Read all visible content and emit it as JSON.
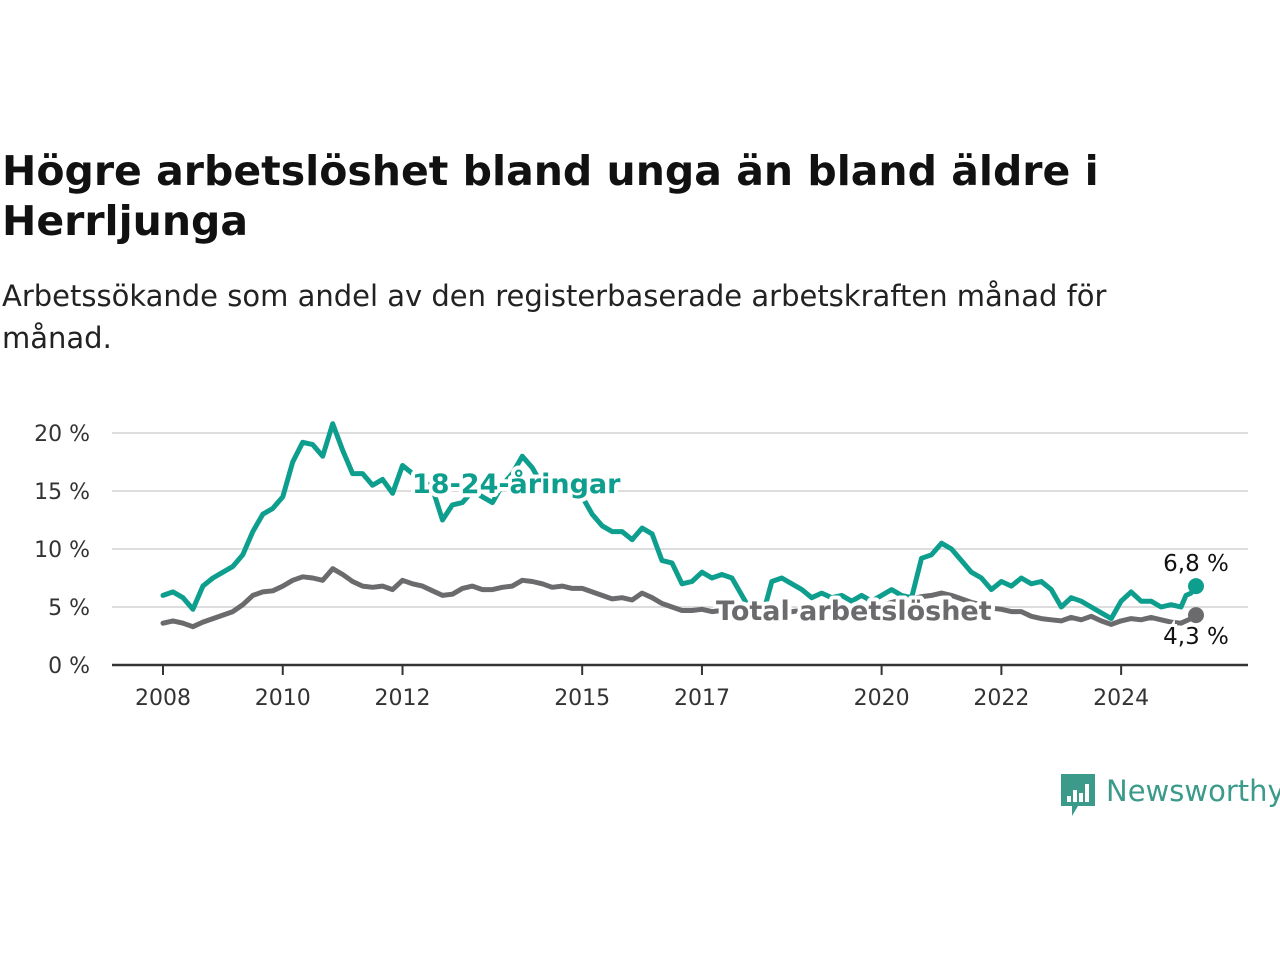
{
  "title": "Högre arbetslöshet bland unga än bland äldre i Herrljunga",
  "subtitle": "Arbetssökande som andel av den registerbaserade arbetskraften månad för månad.",
  "brand": {
    "name": "Newsworthy",
    "icon": "newsworthy-logo-icon",
    "color": "#3c9a8a"
  },
  "colors": {
    "youth": "#0e9e8e",
    "total": "#6b6b6e",
    "grid": "#dddddd",
    "axis": "#333333"
  },
  "chart_data": {
    "type": "line",
    "ylim": [
      0,
      20
    ],
    "y_ticks": [
      0,
      5,
      10,
      15,
      20
    ],
    "y_tick_labels": [
      "0 %",
      "5 %",
      "10 %",
      "15 %",
      "20 %"
    ],
    "xlim": [
      "2008-01",
      "2025-04"
    ],
    "x_ticks": [
      "2008-01",
      "2010-01",
      "2012-01",
      "2015-01",
      "2017-01",
      "2020-01",
      "2022-01",
      "2024-01"
    ],
    "x_tick_labels": [
      "2008",
      "2010",
      "2012",
      "2015",
      "2017",
      "2020",
      "2022",
      "2024"
    ],
    "grid": true,
    "series": [
      {
        "name": "18-24-åringar",
        "end_label": "6,8 %",
        "points": [
          [
            "2008-01",
            6.0
          ],
          [
            "2008-03",
            6.3
          ],
          [
            "2008-05",
            5.8
          ],
          [
            "2008-07",
            4.8
          ],
          [
            "2008-09",
            6.8
          ],
          [
            "2008-11",
            7.5
          ],
          [
            "2009-01",
            8.0
          ],
          [
            "2009-03",
            8.5
          ],
          [
            "2009-05",
            9.5
          ],
          [
            "2009-07",
            11.5
          ],
          [
            "2009-09",
            13.0
          ],
          [
            "2009-11",
            13.5
          ],
          [
            "2010-01",
            14.5
          ],
          [
            "2010-03",
            17.5
          ],
          [
            "2010-05",
            19.2
          ],
          [
            "2010-07",
            19.0
          ],
          [
            "2010-09",
            18.0
          ],
          [
            "2010-11",
            20.8
          ],
          [
            "2011-01",
            18.5
          ],
          [
            "2011-03",
            16.5
          ],
          [
            "2011-05",
            16.5
          ],
          [
            "2011-07",
            15.5
          ],
          [
            "2011-09",
            16.0
          ],
          [
            "2011-11",
            14.8
          ],
          [
            "2012-01",
            17.2
          ],
          [
            "2012-03",
            16.5
          ],
          [
            "2012-05",
            16.0
          ],
          [
            "2012-07",
            15.2
          ],
          [
            "2012-09",
            12.5
          ],
          [
            "2012-11",
            13.8
          ],
          [
            "2013-01",
            14.0
          ],
          [
            "2013-03",
            15.0
          ],
          [
            "2013-05",
            14.5
          ],
          [
            "2013-07",
            14.0
          ],
          [
            "2013-09",
            15.5
          ],
          [
            "2013-11",
            16.5
          ],
          [
            "2014-01",
            18.0
          ],
          [
            "2014-03",
            17.0
          ],
          [
            "2014-05",
            15.5
          ],
          [
            "2014-07",
            14.8
          ],
          [
            "2014-09",
            15.5
          ],
          [
            "2014-11",
            15.0
          ],
          [
            "2015-01",
            14.5
          ],
          [
            "2015-03",
            13.0
          ],
          [
            "2015-05",
            12.0
          ],
          [
            "2015-07",
            11.5
          ],
          [
            "2015-09",
            11.5
          ],
          [
            "2015-11",
            10.8
          ],
          [
            "2016-01",
            11.8
          ],
          [
            "2016-03",
            11.3
          ],
          [
            "2016-05",
            9.0
          ],
          [
            "2016-07",
            8.8
          ],
          [
            "2016-09",
            7.0
          ],
          [
            "2016-11",
            7.2
          ],
          [
            "2017-01",
            8.0
          ],
          [
            "2017-03",
            7.5
          ],
          [
            "2017-05",
            7.8
          ],
          [
            "2017-07",
            7.5
          ],
          [
            "2017-09",
            6.0
          ],
          [
            "2017-11",
            4.5
          ],
          [
            "2018-01",
            4.0
          ],
          [
            "2018-03",
            7.2
          ],
          [
            "2018-05",
            7.5
          ],
          [
            "2018-07",
            7.0
          ],
          [
            "2018-09",
            6.5
          ],
          [
            "2018-11",
            5.8
          ],
          [
            "2019-01",
            6.2
          ],
          [
            "2019-03",
            5.8
          ],
          [
            "2019-05",
            6.0
          ],
          [
            "2019-07",
            5.5
          ],
          [
            "2019-09",
            6.0
          ],
          [
            "2019-11",
            5.5
          ],
          [
            "2020-01",
            6.0
          ],
          [
            "2020-03",
            6.5
          ],
          [
            "2020-05",
            6.0
          ],
          [
            "2020-07",
            5.8
          ],
          [
            "2020-09",
            9.2
          ],
          [
            "2020-11",
            9.5
          ],
          [
            "2021-01",
            10.5
          ],
          [
            "2021-03",
            10.0
          ],
          [
            "2021-05",
            9.0
          ],
          [
            "2021-07",
            8.0
          ],
          [
            "2021-09",
            7.5
          ],
          [
            "2021-11",
            6.5
          ],
          [
            "2022-01",
            7.2
          ],
          [
            "2022-03",
            6.8
          ],
          [
            "2022-05",
            7.5
          ],
          [
            "2022-07",
            7.0
          ],
          [
            "2022-09",
            7.2
          ],
          [
            "2022-11",
            6.5
          ],
          [
            "2023-01",
            5.0
          ],
          [
            "2023-03",
            5.8
          ],
          [
            "2023-05",
            5.5
          ],
          [
            "2023-07",
            5.0
          ],
          [
            "2023-09",
            4.5
          ],
          [
            "2023-11",
            4.0
          ],
          [
            "2024-01",
            5.5
          ],
          [
            "2024-03",
            6.3
          ],
          [
            "2024-05",
            5.5
          ],
          [
            "2024-07",
            5.5
          ],
          [
            "2024-09",
            5.0
          ],
          [
            "2024-11",
            5.2
          ],
          [
            "2025-01",
            5.0
          ],
          [
            "2025-02",
            6.0
          ],
          [
            "2025-03",
            6.2
          ],
          [
            "2025-04",
            6.8
          ]
        ]
      },
      {
        "name": "Total arbetslöshet",
        "end_label": "4,3 %",
        "points": [
          [
            "2008-01",
            3.6
          ],
          [
            "2008-03",
            3.8
          ],
          [
            "2008-05",
            3.6
          ],
          [
            "2008-07",
            3.3
          ],
          [
            "2008-09",
            3.7
          ],
          [
            "2008-11",
            4.0
          ],
          [
            "2009-01",
            4.3
          ],
          [
            "2009-03",
            4.6
          ],
          [
            "2009-05",
            5.2
          ],
          [
            "2009-07",
            6.0
          ],
          [
            "2009-09",
            6.3
          ],
          [
            "2009-11",
            6.4
          ],
          [
            "2010-01",
            6.8
          ],
          [
            "2010-03",
            7.3
          ],
          [
            "2010-05",
            7.6
          ],
          [
            "2010-07",
            7.5
          ],
          [
            "2010-09",
            7.3
          ],
          [
            "2010-11",
            8.3
          ],
          [
            "2011-01",
            7.8
          ],
          [
            "2011-03",
            7.2
          ],
          [
            "2011-05",
            6.8
          ],
          [
            "2011-07",
            6.7
          ],
          [
            "2011-09",
            6.8
          ],
          [
            "2011-11",
            6.5
          ],
          [
            "2012-01",
            7.3
          ],
          [
            "2012-03",
            7.0
          ],
          [
            "2012-05",
            6.8
          ],
          [
            "2012-07",
            6.4
          ],
          [
            "2012-09",
            6.0
          ],
          [
            "2012-11",
            6.1
          ],
          [
            "2013-01",
            6.6
          ],
          [
            "2013-03",
            6.8
          ],
          [
            "2013-05",
            6.5
          ],
          [
            "2013-07",
            6.5
          ],
          [
            "2013-09",
            6.7
          ],
          [
            "2013-11",
            6.8
          ],
          [
            "2014-01",
            7.3
          ],
          [
            "2014-03",
            7.2
          ],
          [
            "2014-05",
            7.0
          ],
          [
            "2014-07",
            6.7
          ],
          [
            "2014-09",
            6.8
          ],
          [
            "2014-11",
            6.6
          ],
          [
            "2015-01",
            6.6
          ],
          [
            "2015-03",
            6.3
          ],
          [
            "2015-05",
            6.0
          ],
          [
            "2015-07",
            5.7
          ],
          [
            "2015-09",
            5.8
          ],
          [
            "2015-11",
            5.6
          ],
          [
            "2016-01",
            6.2
          ],
          [
            "2016-03",
            5.8
          ],
          [
            "2016-05",
            5.3
          ],
          [
            "2016-07",
            5.0
          ],
          [
            "2016-09",
            4.7
          ],
          [
            "2016-11",
            4.7
          ],
          [
            "2017-01",
            4.8
          ],
          [
            "2017-03",
            4.6
          ],
          [
            "2017-05",
            4.7
          ],
          [
            "2017-07",
            4.5
          ],
          [
            "2017-09",
            4.2
          ],
          [
            "2017-11",
            4.1
          ],
          [
            "2018-01",
            4.0
          ],
          [
            "2018-03",
            4.4
          ],
          [
            "2018-05",
            4.5
          ],
          [
            "2018-07",
            4.6
          ],
          [
            "2018-09",
            4.7
          ],
          [
            "2018-11",
            4.6
          ],
          [
            "2019-01",
            4.8
          ],
          [
            "2019-03",
            4.9
          ],
          [
            "2019-05",
            4.9
          ],
          [
            "2019-07",
            4.8
          ],
          [
            "2019-09",
            5.0
          ],
          [
            "2019-11",
            5.0
          ],
          [
            "2020-01",
            5.1
          ],
          [
            "2020-03",
            5.4
          ],
          [
            "2020-05",
            5.6
          ],
          [
            "2020-07",
            5.7
          ],
          [
            "2020-09",
            5.9
          ],
          [
            "2020-11",
            6.0
          ],
          [
            "2021-01",
            6.2
          ],
          [
            "2021-03",
            6.0
          ],
          [
            "2021-05",
            5.7
          ],
          [
            "2021-07",
            5.4
          ],
          [
            "2021-09",
            5.2
          ],
          [
            "2021-11",
            4.9
          ],
          [
            "2022-01",
            4.8
          ],
          [
            "2022-03",
            4.6
          ],
          [
            "2022-05",
            4.6
          ],
          [
            "2022-07",
            4.2
          ],
          [
            "2022-09",
            4.0
          ],
          [
            "2022-11",
            3.9
          ],
          [
            "2023-01",
            3.8
          ],
          [
            "2023-03",
            4.1
          ],
          [
            "2023-05",
            3.9
          ],
          [
            "2023-07",
            4.2
          ],
          [
            "2023-09",
            3.8
          ],
          [
            "2023-11",
            3.5
          ],
          [
            "2024-01",
            3.8
          ],
          [
            "2024-03",
            4.0
          ],
          [
            "2024-05",
            3.9
          ],
          [
            "2024-07",
            4.1
          ],
          [
            "2024-09",
            3.9
          ],
          [
            "2024-11",
            3.7
          ],
          [
            "2025-01",
            3.6
          ],
          [
            "2025-02",
            3.8
          ],
          [
            "2025-03",
            4.0
          ],
          [
            "2025-04",
            4.3
          ]
        ]
      }
    ]
  }
}
